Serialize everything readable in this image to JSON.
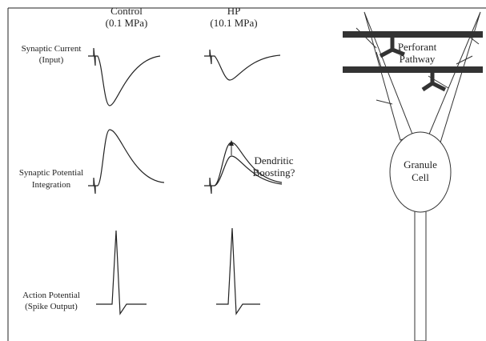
{
  "columns": [
    {
      "title": "Control",
      "subtitle": "(0.1 MPa)"
    },
    {
      "title": "HP",
      "subtitle": "(10.1 MPa)"
    }
  ],
  "rows": [
    {
      "label": [
        "Synaptic Current",
        "(Input)"
      ]
    },
    {
      "label": [
        "Synaptic Potential",
        "Integration"
      ]
    },
    {
      "label": [
        "Action Potential",
        "(Spike Output)"
      ]
    }
  ],
  "annotation": [
    "Dendritic",
    "Boosting?"
  ],
  "neuron": {
    "pathway": [
      "Perforant",
      "Pathway"
    ],
    "soma": [
      "Granule",
      "Cell"
    ]
  }
}
